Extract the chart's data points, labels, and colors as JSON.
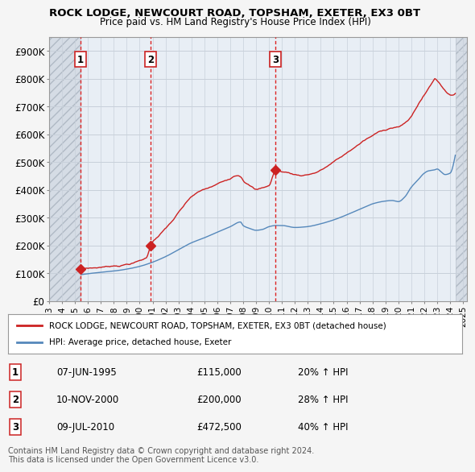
{
  "title": "ROCK LODGE, NEWCOURT ROAD, TOPSHAM, EXETER, EX3 0BT",
  "subtitle": "Price paid vs. HM Land Registry's House Price Index (HPI)",
  "xlim": [
    1993.0,
    2025.3
  ],
  "ylim": [
    0,
    950000
  ],
  "yticks": [
    0,
    100000,
    200000,
    300000,
    400000,
    500000,
    600000,
    700000,
    800000,
    900000
  ],
  "ytick_labels": [
    "£0",
    "£100K",
    "£200K",
    "£300K",
    "£400K",
    "£500K",
    "£600K",
    "£700K",
    "£800K",
    "£900K"
  ],
  "xticks": [
    1993,
    1994,
    1995,
    1996,
    1997,
    1998,
    1999,
    2000,
    2001,
    2002,
    2003,
    2004,
    2005,
    2006,
    2007,
    2008,
    2009,
    2010,
    2011,
    2012,
    2013,
    2014,
    2015,
    2016,
    2017,
    2018,
    2019,
    2020,
    2021,
    2022,
    2023,
    2024,
    2025
  ],
  "hatch_left_end": 1995.42,
  "hatch_right_start": 2024.42,
  "sale_dates": [
    1995.42,
    2000.84,
    2010.5
  ],
  "sale_prices": [
    115000,
    200000,
    472500
  ],
  "sale_labels": [
    "1",
    "2",
    "3"
  ],
  "red_line_color": "#cc2222",
  "blue_line_color": "#5588bb",
  "hatch_color": "#c0c8d0",
  "sale_marker_color": "#cc2222",
  "vline_color": "#dd2222",
  "legend_red_label": "ROCK LODGE, NEWCOURT ROAD, TOPSHAM, EXETER, EX3 0BT (detached house)",
  "legend_blue_label": "HPI: Average price, detached house, Exeter",
  "table_rows": [
    [
      "1",
      "07-JUN-1995",
      "£115,000",
      "20% ↑ HPI"
    ],
    [
      "2",
      "10-NOV-2000",
      "£200,000",
      "28% ↑ HPI"
    ],
    [
      "3",
      "09-JUL-2010",
      "£472,500",
      "40% ↑ HPI"
    ]
  ],
  "footnote1": "Contains HM Land Registry data © Crown copyright and database right 2024.",
  "footnote2": "This data is licensed under the Open Government Licence v3.0.",
  "bg_color": "#f5f5f5",
  "plot_bg_color": "#e8eef5",
  "grid_color": "#c8d0da"
}
